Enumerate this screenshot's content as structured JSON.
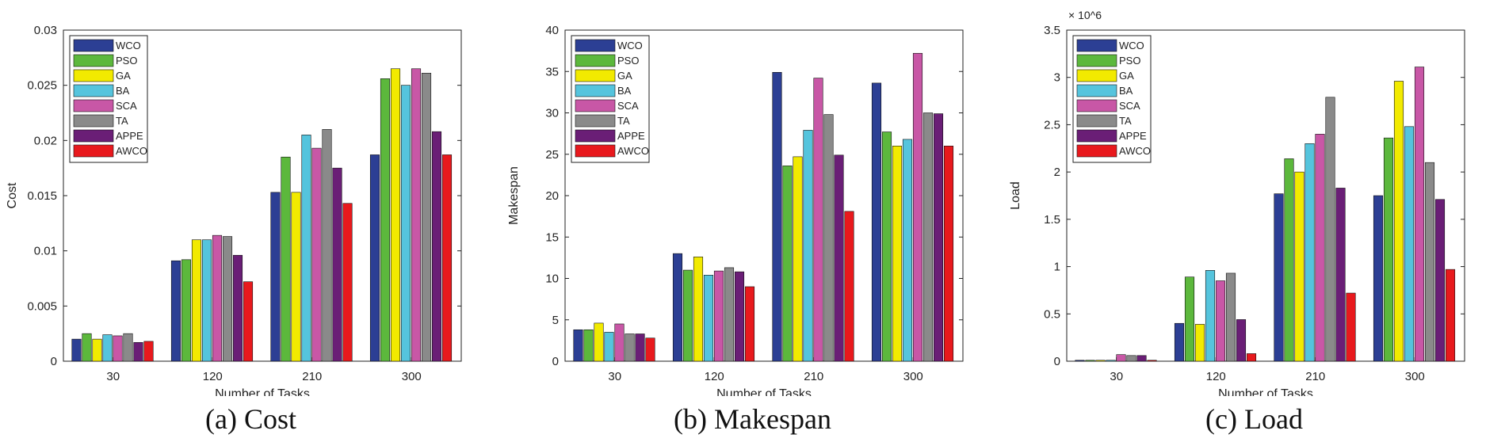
{
  "colors": {
    "WCO": "#2c3f94",
    "PSO": "#5cb83c",
    "GA": "#f2ea00",
    "BA": "#55c4dd",
    "SCA": "#c857a6",
    "TA": "#8a8a8a",
    "APPE": "#6a1e76",
    "AWCO": "#e8191d"
  },
  "captions": [
    "(a) Cost",
    "(b) Makespan",
    "(c) Load"
  ],
  "chart_data": [
    {
      "type": "bar",
      "title": "",
      "xlabel": "Number of Tasks",
      "ylabel": "Cost",
      "ylim": [
        0,
        0.03
      ],
      "yticks": [
        0,
        0.005,
        0.01,
        0.015,
        0.02,
        0.025,
        0.03
      ],
      "ytick_labels": [
        "0",
        "0.005",
        "0.01",
        "0.015",
        "0.02",
        "0.025",
        "0.03"
      ],
      "exponent_label": "",
      "categories": [
        "30",
        "120",
        "210",
        "300"
      ],
      "legend_position": "top-left",
      "series": [
        {
          "name": "WCO",
          "values": [
            0.002,
            0.0091,
            0.0153,
            0.0187
          ]
        },
        {
          "name": "PSO",
          "values": [
            0.0025,
            0.0092,
            0.0185,
            0.0256
          ]
        },
        {
          "name": "GA",
          "values": [
            0.002,
            0.011,
            0.0153,
            0.0265
          ]
        },
        {
          "name": "BA",
          "values": [
            0.0024,
            0.011,
            0.0205,
            0.025
          ]
        },
        {
          "name": "SCA",
          "values": [
            0.0023,
            0.0114,
            0.0193,
            0.0265
          ]
        },
        {
          "name": "TA",
          "values": [
            0.0025,
            0.0113,
            0.021,
            0.0261
          ]
        },
        {
          "name": "APPE",
          "values": [
            0.0017,
            0.0096,
            0.0175,
            0.0208
          ]
        },
        {
          "name": "AWCO",
          "values": [
            0.0018,
            0.0072,
            0.0143,
            0.0187
          ]
        }
      ]
    },
    {
      "type": "bar",
      "title": "",
      "xlabel": "Number of Tasks",
      "ylabel": "Makespan",
      "ylim": [
        0,
        40
      ],
      "yticks": [
        0,
        5,
        10,
        15,
        20,
        25,
        30,
        35,
        40
      ],
      "ytick_labels": [
        "0",
        "5",
        "10",
        "15",
        "20",
        "25",
        "30",
        "35",
        "40"
      ],
      "exponent_label": "",
      "categories": [
        "30",
        "120",
        "210",
        "300"
      ],
      "legend_position": "top-left",
      "series": [
        {
          "name": "WCO",
          "values": [
            3.8,
            13.0,
            34.9,
            33.6
          ]
        },
        {
          "name": "PSO",
          "values": [
            3.8,
            11.0,
            23.6,
            27.7
          ]
        },
        {
          "name": "GA",
          "values": [
            4.6,
            12.6,
            24.7,
            26.0
          ]
        },
        {
          "name": "BA",
          "values": [
            3.5,
            10.4,
            27.9,
            26.8
          ]
        },
        {
          "name": "SCA",
          "values": [
            4.5,
            10.9,
            34.2,
            37.2
          ]
        },
        {
          "name": "TA",
          "values": [
            3.3,
            11.3,
            29.8,
            30.0
          ]
        },
        {
          "name": "APPE",
          "values": [
            3.3,
            10.8,
            24.9,
            29.9
          ]
        },
        {
          "name": "AWCO",
          "values": [
            2.8,
            9.0,
            18.1,
            26.0
          ]
        }
      ]
    },
    {
      "type": "bar",
      "title": "",
      "xlabel": "Number of Tasks",
      "ylabel": "Load",
      "ylim": [
        0,
        3.5
      ],
      "yticks": [
        0,
        0.5,
        1,
        1.5,
        2,
        2.5,
        3,
        3.5
      ],
      "ytick_labels": [
        "0",
        "0.5",
        "1",
        "1.5",
        "2",
        "2.5",
        "3",
        "3.5"
      ],
      "exponent_label": "× 10^6",
      "categories": [
        "30",
        "120",
        "210",
        "300"
      ],
      "legend_position": "top-left",
      "series": [
        {
          "name": "WCO",
          "values": [
            0.01,
            0.4,
            1.77,
            1.75
          ]
        },
        {
          "name": "PSO",
          "values": [
            0.01,
            0.89,
            2.14,
            2.36
          ]
        },
        {
          "name": "GA",
          "values": [
            0.01,
            0.39,
            2.0,
            2.96
          ]
        },
        {
          "name": "BA",
          "values": [
            0.01,
            0.96,
            2.3,
            2.48
          ]
        },
        {
          "name": "SCA",
          "values": [
            0.07,
            0.85,
            2.4,
            3.11
          ]
        },
        {
          "name": "TA",
          "values": [
            0.06,
            0.93,
            2.79,
            2.1
          ]
        },
        {
          "name": "APPE",
          "values": [
            0.06,
            0.44,
            1.83,
            1.71
          ]
        },
        {
          "name": "AWCO",
          "values": [
            0.01,
            0.08,
            0.72,
            0.97
          ]
        }
      ]
    }
  ]
}
